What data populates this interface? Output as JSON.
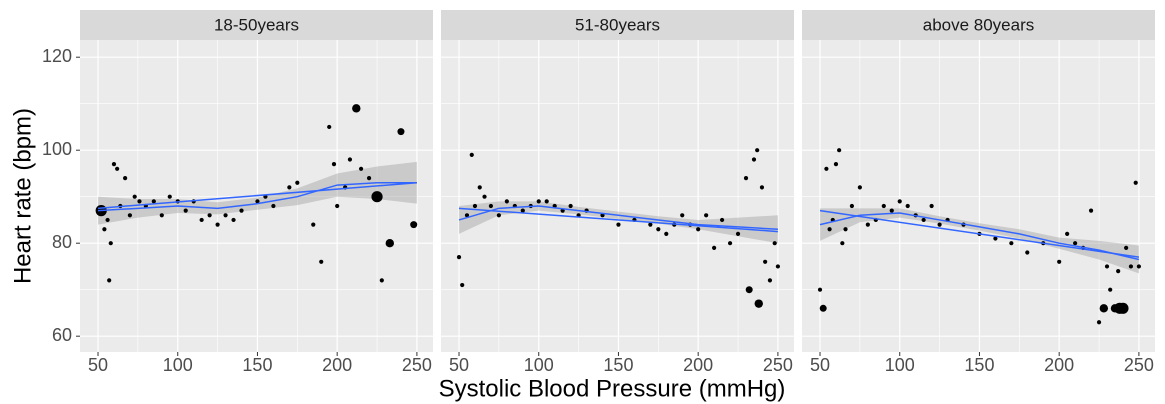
{
  "chart_data": {
    "type": "scatter",
    "xlabel": "Systolic Blood Pressure (mmHg)",
    "ylabel": "Heart rate (bpm)",
    "xlim": [
      38.7,
      260.1
    ],
    "xticks": [
      50,
      100,
      150,
      200,
      250
    ],
    "ylim": [
      56.6,
      123.7
    ],
    "yticks": [
      60,
      80,
      100,
      120
    ],
    "grid": true,
    "color": "#000000",
    "panels": [
      {
        "title": "18-50years",
        "x": [
          52,
          54,
          56,
          57,
          58,
          60,
          62,
          64,
          67,
          70,
          73,
          76,
          80,
          85,
          90,
          95,
          100,
          105,
          110,
          115,
          120,
          125,
          130,
          135,
          140,
          150,
          155,
          160,
          170,
          175,
          185,
          190,
          195,
          198,
          200,
          205,
          208,
          212,
          215,
          220,
          225,
          228,
          233,
          240,
          248
        ],
        "values": [
          87,
          83,
          85,
          72,
          80,
          97,
          96,
          88,
          94,
          86,
          90,
          89,
          88,
          89,
          86,
          90,
          89,
          87,
          89,
          85,
          86,
          84,
          86,
          85,
          87,
          89,
          90,
          88,
          92,
          93,
          84,
          76,
          105,
          97,
          88,
          92,
          98,
          109,
          96,
          94,
          90,
          72,
          80,
          104,
          84
        ],
        "sizes": [
          4,
          1.5,
          1.5,
          1.5,
          1.5,
          1.5,
          1.5,
          1.5,
          1.5,
          1.5,
          1.5,
          1.5,
          1.5,
          1.5,
          1.5,
          1.5,
          1.5,
          1.5,
          1.5,
          1.5,
          1.5,
          1.5,
          1.5,
          1.5,
          1.5,
          1.5,
          1.5,
          1.5,
          1.5,
          1.5,
          1.5,
          1.5,
          1.5,
          1.5,
          1.5,
          1.5,
          1.5,
          3,
          1.5,
          1.5,
          4,
          1.5,
          3,
          2.5,
          2.5
        ],
        "lines": [
          {
            "color": "#3366ff",
            "x": [
              50,
              250
            ],
            "values": [
              87.5,
              93
            ]
          },
          {
            "color": "#3366ff",
            "x": [
              50,
              75,
              100,
              125,
              150,
              175,
              200,
              225,
              250
            ],
            "values": [
              87,
              87.5,
              88,
              87.5,
              88.5,
              90,
              92.5,
              93,
              93
            ],
            "lower": [
              84,
              85.5,
              86.5,
              86.2,
              87.2,
              88.2,
              90,
              89.5,
              88.5
            ],
            "upper": [
              90,
              89.5,
              89.5,
              88.8,
              89.8,
              91.8,
              95,
              96.5,
              97.5
            ]
          }
        ]
      },
      {
        "title": "51-80years",
        "x": [
          50,
          52,
          55,
          58,
          60,
          63,
          66,
          70,
          75,
          80,
          85,
          90,
          95,
          100,
          105,
          110,
          115,
          120,
          125,
          130,
          140,
          150,
          160,
          170,
          175,
          180,
          185,
          190,
          195,
          200,
          205,
          210,
          215,
          220,
          225,
          230,
          232,
          235,
          237,
          238,
          240,
          242,
          245,
          248,
          250
        ],
        "values": [
          77,
          71,
          86,
          99,
          88,
          92,
          90,
          88,
          86,
          89,
          88,
          87,
          88,
          89,
          89,
          88,
          87,
          88,
          86,
          87,
          86,
          84,
          85,
          84,
          83,
          82,
          84,
          86,
          84,
          83,
          86,
          79,
          85,
          80,
          82,
          94,
          70,
          98,
          100,
          67,
          92,
          76,
          72,
          80,
          75
        ],
        "sizes": [
          1.5,
          1.5,
          1.5,
          1.5,
          1.5,
          1.5,
          1.5,
          1.5,
          1.5,
          1.5,
          1.5,
          1.5,
          1.5,
          1.5,
          1.5,
          1.5,
          1.5,
          1.5,
          1.5,
          1.5,
          1.5,
          1.5,
          1.5,
          1.5,
          1.5,
          1.5,
          1.5,
          1.5,
          1.5,
          1.5,
          1.5,
          1.5,
          1.5,
          1.5,
          1.5,
          1.5,
          2.5,
          1.5,
          1.5,
          3,
          1.5,
          1.5,
          1.5,
          1.5,
          1.5
        ],
        "lines": [
          {
            "color": "#3366ff",
            "x": [
              50,
              250
            ],
            "values": [
              87.5,
              82.5
            ]
          },
          {
            "color": "#3366ff",
            "x": [
              50,
              75,
              100,
              125,
              150,
              175,
              200,
              225,
              250
            ],
            "values": [
              85,
              87.5,
              88,
              87,
              86,
              85,
              84,
              83.5,
              83
            ],
            "lower": [
              82,
              86,
              87,
              86.2,
              85.2,
              84.2,
              83,
              81.5,
              80
            ],
            "upper": [
              88,
              89,
              89,
              87.8,
              86.8,
              85.8,
              85,
              85.5,
              86
            ]
          }
        ]
      },
      {
        "title": "above 80years",
        "x": [
          50,
          52,
          54,
          56,
          58,
          60,
          62,
          64,
          66,
          70,
          75,
          80,
          85,
          90,
          95,
          100,
          105,
          110,
          115,
          120,
          125,
          130,
          140,
          150,
          160,
          170,
          180,
          190,
          200,
          205,
          210,
          215,
          220,
          225,
          228,
          230,
          232,
          235,
          237,
          238,
          240,
          242,
          245,
          248,
          250
        ],
        "values": [
          70,
          66,
          96,
          83,
          85,
          97,
          100,
          80,
          83,
          88,
          92,
          84,
          85,
          88,
          87,
          89,
          88,
          86,
          85,
          88,
          84,
          85,
          84,
          82,
          81,
          80,
          78,
          80,
          76,
          82,
          80,
          79,
          87,
          63,
          66,
          75,
          70,
          66,
          74,
          66,
          66,
          79,
          75,
          93,
          75
        ],
        "sizes": [
          1.5,
          2.5,
          1.5,
          1.5,
          1.5,
          1.5,
          1.5,
          1.5,
          1.5,
          1.5,
          1.5,
          1.5,
          1.5,
          1.5,
          1.5,
          1.5,
          1.5,
          1.5,
          1.5,
          1.5,
          1.5,
          1.5,
          1.5,
          1.5,
          1.5,
          1.5,
          1.5,
          1.5,
          1.5,
          1.5,
          1.5,
          1.5,
          1.5,
          1.5,
          3,
          1.5,
          1.5,
          3,
          1.5,
          4,
          4,
          1.5,
          1.5,
          1.5,
          1.5
        ],
        "lines": [
          {
            "color": "#3366ff",
            "x": [
              50,
              250
            ],
            "values": [
              87,
              77
            ]
          },
          {
            "color": "#3366ff",
            "x": [
              50,
              75,
              100,
              125,
              150,
              175,
              200,
              225,
              250
            ],
            "values": [
              84,
              86,
              86.5,
              85,
              83.5,
              82,
              80,
              78.5,
              76.5
            ],
            "lower": [
              80.5,
              84.5,
              85.5,
              84.2,
              82.7,
              81,
              78.8,
              76.5,
              73.5
            ],
            "upper": [
              87.5,
              87.5,
              87.5,
              85.8,
              84.3,
              83,
              81.2,
              80.5,
              79.5
            ]
          }
        ]
      }
    ]
  }
}
